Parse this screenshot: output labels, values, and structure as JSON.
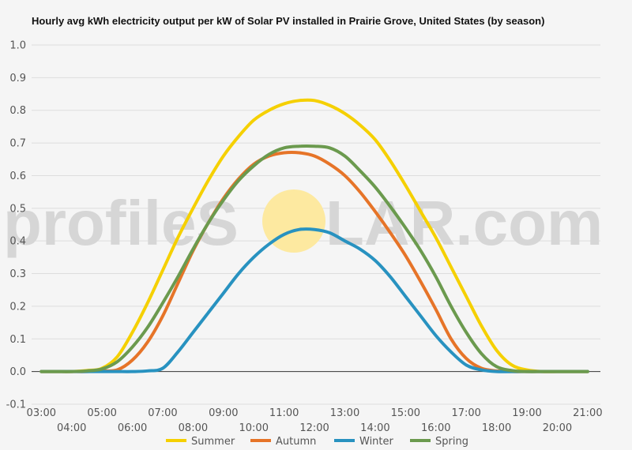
{
  "chart_data": {
    "type": "line",
    "title": "Hourly avg kWh electricity output per kW of Solar PV installed in Prairie Grove, United States (by season)",
    "xlabel": "",
    "ylabel": "",
    "ylim": [
      -0.1,
      1.0
    ],
    "y_ticks": [
      "1.0",
      "0.9",
      "0.8",
      "0.7",
      "0.6",
      "0.5",
      "0.4",
      "0.3",
      "0.2",
      "0.1",
      "0.0",
      "-0.1"
    ],
    "y_tick_values": [
      1.0,
      0.9,
      0.8,
      0.7,
      0.6,
      0.5,
      0.4,
      0.3,
      0.2,
      0.1,
      0.0,
      -0.1
    ],
    "x_ticks": [
      "03:00",
      "04:00",
      "05:00",
      "06:00",
      "07:00",
      "08:00",
      "09:00",
      "10:00",
      "11:00",
      "12:00",
      "13:00",
      "14:00",
      "15:00",
      "16:00",
      "17:00",
      "18:00",
      "19:00",
      "20:00",
      "21:00"
    ],
    "x_tick_values": [
      3,
      4,
      5,
      6,
      7,
      8,
      9,
      10,
      11,
      12,
      13,
      14,
      15,
      16,
      17,
      18,
      19,
      20,
      21
    ],
    "grid": true,
    "legend": "bottom",
    "x": [
      3,
      3.5,
      4,
      4.5,
      5,
      5.5,
      6,
      6.5,
      7,
      7.5,
      8,
      8.5,
      9,
      9.5,
      10,
      10.5,
      11,
      11.5,
      12,
      12.5,
      13,
      13.5,
      14,
      14.5,
      15,
      15.5,
      16,
      16.5,
      17,
      17.5,
      18,
      18.5,
      19,
      19.5,
      20,
      20.5,
      21
    ],
    "series": [
      {
        "name": "Summer",
        "color": "#f5d000",
        "values": [
          0,
          0,
          0,
          0.003,
          0.01,
          0.045,
          0.12,
          0.21,
          0.31,
          0.41,
          0.5,
          0.585,
          0.66,
          0.72,
          0.77,
          0.8,
          0.82,
          0.83,
          0.83,
          0.815,
          0.79,
          0.755,
          0.71,
          0.645,
          0.57,
          0.49,
          0.41,
          0.32,
          0.23,
          0.14,
          0.065,
          0.02,
          0.005,
          0,
          0,
          0,
          0
        ]
      },
      {
        "name": "Autumn",
        "color": "#e67428",
        "values": [
          0,
          0,
          0,
          0,
          0.002,
          0.005,
          0.035,
          0.09,
          0.17,
          0.27,
          0.37,
          0.455,
          0.53,
          0.59,
          0.635,
          0.66,
          0.67,
          0.67,
          0.66,
          0.635,
          0.6,
          0.55,
          0.49,
          0.425,
          0.355,
          0.275,
          0.19,
          0.1,
          0.04,
          0.01,
          0.002,
          0,
          0,
          0,
          0,
          0,
          0
        ]
      },
      {
        "name": "Winter",
        "color": "#2892c0",
        "values": [
          0,
          0,
          0,
          0,
          0,
          0,
          0,
          0.002,
          0.01,
          0.06,
          0.12,
          0.18,
          0.24,
          0.3,
          0.35,
          0.39,
          0.42,
          0.435,
          0.435,
          0.425,
          0.4,
          0.375,
          0.34,
          0.29,
          0.23,
          0.17,
          0.11,
          0.06,
          0.02,
          0.005,
          0,
          0,
          0,
          0,
          0,
          0,
          0
        ]
      },
      {
        "name": "Spring",
        "color": "#6b9a4e",
        "values": [
          0,
          0,
          0,
          0.002,
          0.008,
          0.03,
          0.075,
          0.135,
          0.21,
          0.29,
          0.375,
          0.455,
          0.525,
          0.585,
          0.63,
          0.665,
          0.685,
          0.69,
          0.69,
          0.685,
          0.66,
          0.615,
          0.565,
          0.505,
          0.44,
          0.37,
          0.29,
          0.2,
          0.12,
          0.055,
          0.015,
          0.003,
          0,
          0,
          0,
          0,
          0
        ]
      }
    ]
  },
  "watermark": {
    "left": "profileS",
    "right": "LAR.com",
    "sun_color": "#fde9a0"
  }
}
